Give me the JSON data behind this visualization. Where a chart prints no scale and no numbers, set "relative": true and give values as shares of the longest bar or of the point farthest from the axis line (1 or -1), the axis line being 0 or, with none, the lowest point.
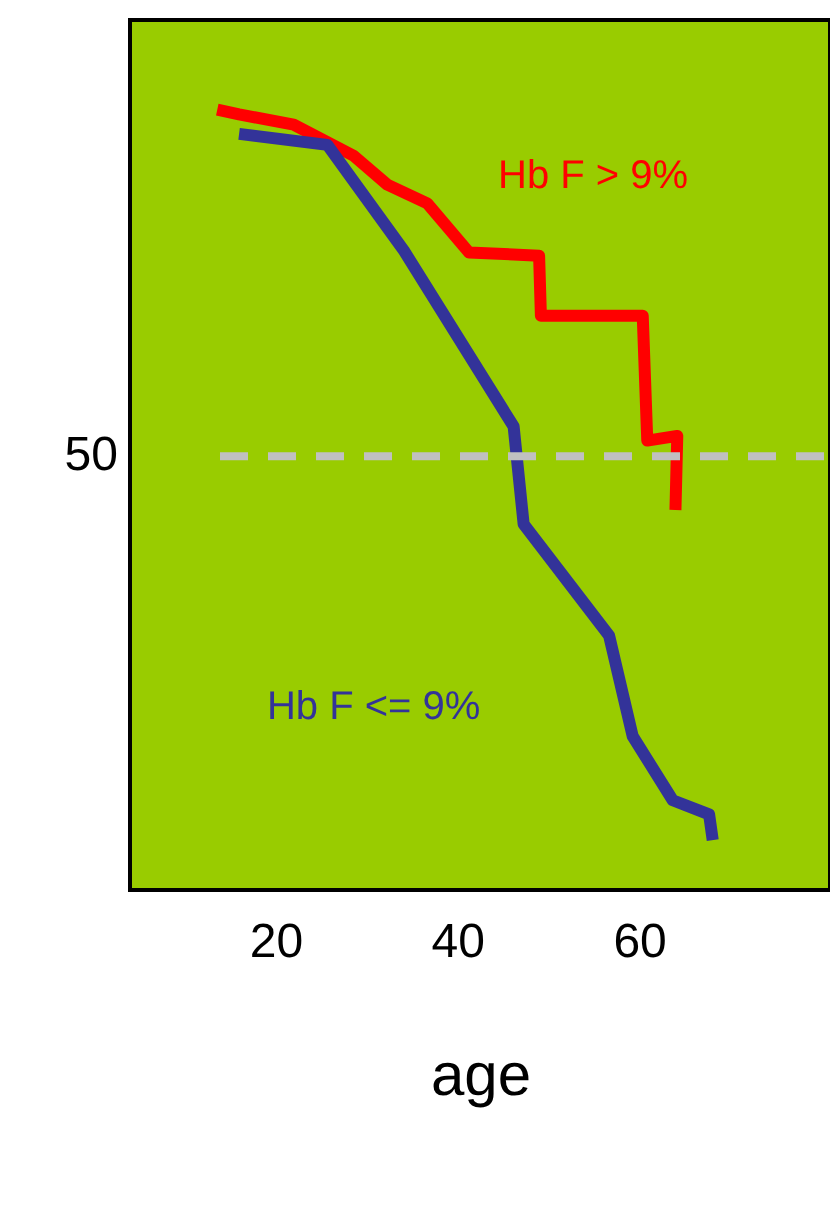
{
  "chart_data": {
    "type": "line",
    "xlabel": "age",
    "relative": true,
    "xlim": [
      4,
      81
    ],
    "xticks": [
      20,
      40,
      60
    ],
    "series": [
      {
        "name": "Hb F > 9%",
        "color": "#ff0000",
        "x": [
          13.6,
          16.0,
          22.0,
          28.6,
          32.3,
          36.7,
          41.3,
          49.0,
          49.2,
          60.4,
          60.9,
          64.2,
          64.0
        ],
        "values": [
          1.0,
          0.994,
          0.981,
          0.941,
          0.904,
          0.88,
          0.817,
          0.813,
          0.736,
          0.736,
          0.576,
          0.582,
          0.487
        ]
      },
      {
        "name": "Hb F <= 9%",
        "color": "#333399",
        "x": [
          16.0,
          25.7,
          34.1,
          46.2,
          47.3,
          56.7,
          59.3,
          63.7,
          67.7,
          68.1
        ],
        "values": [
          0.969,
          0.955,
          0.82,
          0.594,
          0.469,
          0.326,
          0.197,
          0.115,
          0.097,
          0.064
        ]
      }
    ],
    "ref_lines": [
      {
        "axis": "y",
        "value": 0.556,
        "color": "#c0c0c0",
        "line_style": "dashed"
      }
    ],
    "annotations": [
      "50"
    ],
    "grid": false,
    "line_style": "solid",
    "marker": "none"
  }
}
